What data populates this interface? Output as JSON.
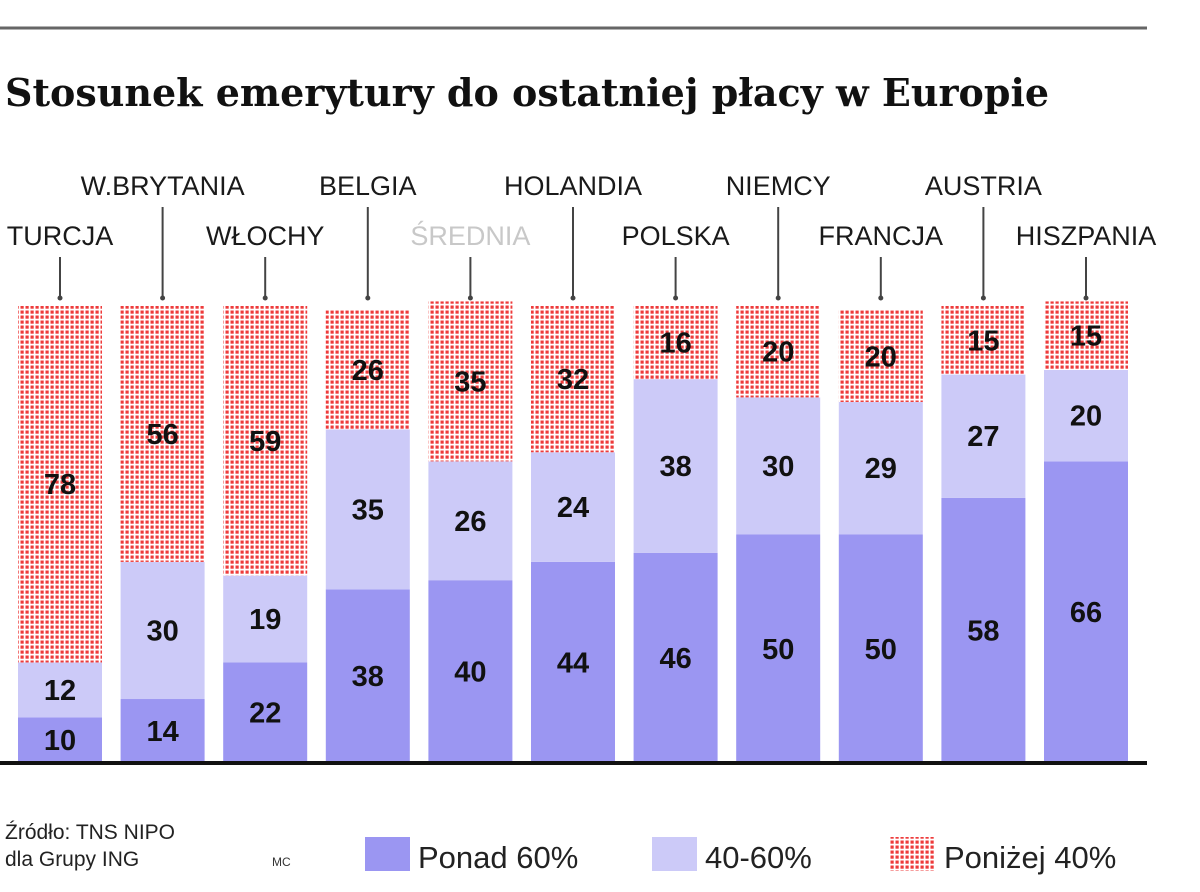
{
  "chart_data": {
    "type": "bar",
    "stacked": true,
    "title": "Stosunek emerytury do ostatniej płacy w Europie",
    "categories": [
      "TURCJA",
      "W.BRYTANIA",
      "WŁOCHY",
      "BELGIA",
      "ŚREDNIA",
      "HOLANDIA",
      "POLSKA",
      "NIEMCY",
      "FRANCJA",
      "AUSTRIA",
      "HISZPANIA"
    ],
    "highlight_category": "ŚREDNIA",
    "series": [
      {
        "name": "Ponad 60%",
        "values": [
          10,
          14,
          22,
          38,
          40,
          44,
          46,
          50,
          50,
          58,
          66
        ],
        "color": "#9b96f2",
        "pattern": "solid"
      },
      {
        "name": "40-60%",
        "values": [
          12,
          30,
          19,
          35,
          26,
          24,
          38,
          30,
          29,
          27,
          20
        ],
        "color": "#cccaf8",
        "pattern": "solid"
      },
      {
        "name": "Poniżej 40%",
        "values": [
          78,
          56,
          59,
          26,
          35,
          32,
          16,
          20,
          20,
          15,
          15
        ],
        "color": "#ee3b3b",
        "pattern": "dotted"
      }
    ],
    "ylim": [
      0,
      100
    ],
    "grid": false,
    "legend_position": "bottom-right"
  },
  "footer": {
    "source_line1": "Źródło: TNS NIPO",
    "source_line2": "dla Grupy ING",
    "credit": "MC"
  }
}
